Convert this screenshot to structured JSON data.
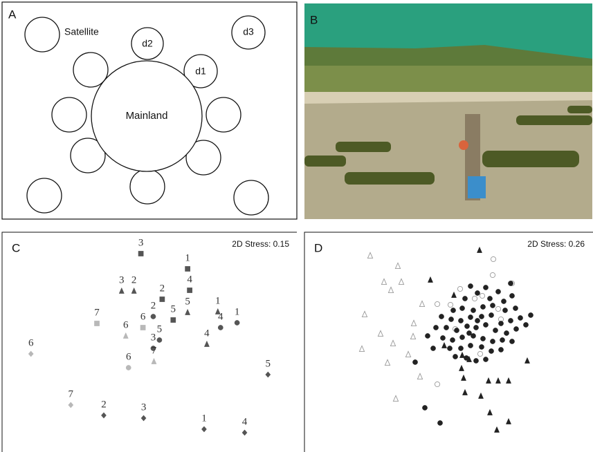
{
  "panel_a": {
    "label": "A",
    "satellite": "Satellite",
    "d1": "d1",
    "d2": "d2",
    "d3": "d3",
    "mainland": "Mainland"
  },
  "panel_b": {
    "label": "B"
  },
  "chart_data": [
    {
      "type": "scatter",
      "panel_label": "C",
      "annotation": "2D Stress: 0.15",
      "xlim": [
        0,
        430
      ],
      "ylim": [
        0,
        320
      ],
      "series": [
        {
          "shape": "square",
          "color": "#555555",
          "filled": true,
          "x": [
            202,
            270,
            273,
            233,
            249
          ],
          "y": [
            287,
            265,
            234,
            221,
            191
          ],
          "labels": [
            "3",
            "1",
            "4",
            "2",
            "5"
          ]
        },
        {
          "shape": "triangle",
          "color": "#555555",
          "filled": true,
          "x": [
            174,
            192,
            270,
            314,
            298
          ],
          "y": [
            233,
            233,
            202,
            203,
            156
          ],
          "labels": [
            "3",
            "2",
            "5",
            "1",
            "4"
          ]
        },
        {
          "shape": "circle",
          "color": "#555555",
          "filled": true,
          "x": [
            220,
            229,
            220,
            318,
            342
          ],
          "y": [
            196,
            162,
            150,
            180,
            187
          ],
          "labels": [
            "2",
            "5",
            "3",
            "4",
            "1"
          ]
        },
        {
          "shape": "diamond",
          "color": "#555555",
          "filled": true,
          "x": [
            148,
            206,
            294,
            353,
            387
          ],
          "y": [
            53,
            49,
            33,
            28,
            112
          ],
          "labels": [
            "2",
            "3",
            "1",
            "4",
            "5"
          ]
        },
        {
          "shape": "square",
          "color": "#b8b8b8",
          "filled": true,
          "x": [
            138,
            205
          ],
          "y": [
            186,
            180
          ],
          "labels": [
            "7",
            "6"
          ]
        },
        {
          "shape": "triangle",
          "color": "#b8b8b8",
          "filled": true,
          "x": [
            180,
            221
          ],
          "y": [
            168,
            131
          ],
          "labels": [
            "6",
            "7"
          ]
        },
        {
          "shape": "circle",
          "color": "#b8b8b8",
          "filled": true,
          "x": [
            184
          ],
          "y": [
            122
          ],
          "labels": [
            "6"
          ]
        },
        {
          "shape": "diamond",
          "color": "#b8b8b8",
          "filled": true,
          "x": [
            42,
            100
          ],
          "y": [
            142,
            68
          ],
          "labels": [
            "6",
            "7"
          ]
        }
      ]
    },
    {
      "type": "scatter",
      "panel_label": "D",
      "annotation": "2D Stress: 0.26",
      "xlim": [
        0,
        417
      ],
      "ylim": [
        0,
        320
      ],
      "series": [
        {
          "shape": "triangle",
          "color": "#999999",
          "filled": false,
          "x": [
            95,
            135,
            115,
            125,
            140,
            170,
            87,
            158,
            110,
            157,
            128,
            83,
            150,
            120,
            167,
            132
          ],
          "y": [
            284,
            269,
            246,
            234,
            246,
            214,
            199,
            186,
            171,
            167,
            157,
            149,
            141,
            129,
            109,
            77
          ]
        },
        {
          "shape": "triangle",
          "color": "#222222",
          "filled": true,
          "x": [
            253,
            182,
            216,
            202,
            322,
            228,
            238,
            230,
            266,
            280,
            295,
            232,
            255,
            268,
            295,
            278,
            227
          ],
          "y": [
            292,
            249,
            227,
            154,
            132,
            140,
            134,
            107,
            103,
            103,
            103,
            86,
            81,
            57,
            44,
            32,
            121
          ]
        },
        {
          "shape": "circle",
          "color": "#999999",
          "filled": false,
          "x": [
            273,
            300,
            225,
            257,
            211,
            192,
            280,
            284,
            218,
            254,
            192,
            272,
            246
          ],
          "y": [
            279,
            244,
            236,
            226,
            213,
            214,
            207,
            192,
            178,
            142,
            98,
            256,
            222
          ]
        },
        {
          "shape": "circle",
          "color": "#222222",
          "filled": true,
          "x": [
            298,
            327,
            240,
            262,
            280,
            250,
            232,
            268,
            288,
            300,
            215,
            228,
            244,
            258,
            272,
            290,
            305,
            198,
            212,
            226,
            240,
            256,
            270,
            284,
            298,
            312,
            205,
            220,
            235,
            248,
            262,
            276,
            292,
            306,
            320,
            200,
            214,
            228,
            244,
            258,
            272,
            286,
            300,
            210,
            226,
            240,
            256,
            270,
            284,
            218,
            234,
            248,
            262,
            178,
            190,
            186,
            160,
            174,
            196,
            238,
            250
          ],
          "y": [
            244,
            198,
            240,
            238,
            232,
            230,
            222,
            222,
            218,
            226,
            205,
            208,
            205,
            210,
            212,
            205,
            208,
            196,
            192,
            190,
            195,
            196,
            198,
            186,
            190,
            194,
            180,
            176,
            182,
            180,
            184,
            176,
            172,
            178,
            184,
            165,
            162,
            166,
            168,
            164,
            160,
            162,
            160,
            150,
            150,
            154,
            152,
            146,
            148,
            138,
            136,
            132,
            134,
            168,
            180,
            150,
            130,
            64,
            42,
            172,
            190
          ]
        }
      ]
    }
  ]
}
